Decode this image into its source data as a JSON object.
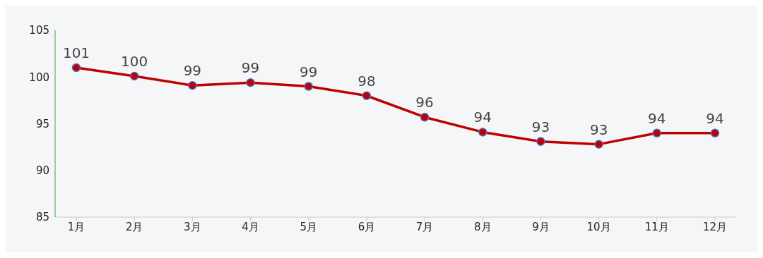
{
  "chart_data": {
    "type": "line",
    "categories": [
      "1月",
      "2月",
      "3月",
      "4月",
      "5月",
      "6月",
      "7月",
      "8月",
      "9月",
      "10月",
      "11月",
      "12月"
    ],
    "series": [
      {
        "color": "#c00000",
        "values": [
          101,
          100.1,
          99.1,
          99.4,
          99,
          98,
          95.7,
          94.1,
          93.1,
          92.8,
          94,
          94
        ],
        "value_labels": [
          "101",
          "100",
          "99",
          "99",
          "99",
          "98",
          "96",
          "94",
          "93",
          "93",
          "94",
          "94"
        ]
      }
    ],
    "ylim": [
      85,
      105
    ],
    "yticks": [
      85,
      90,
      95,
      100,
      105
    ],
    "marker": "circle",
    "line_style": "solid"
  }
}
